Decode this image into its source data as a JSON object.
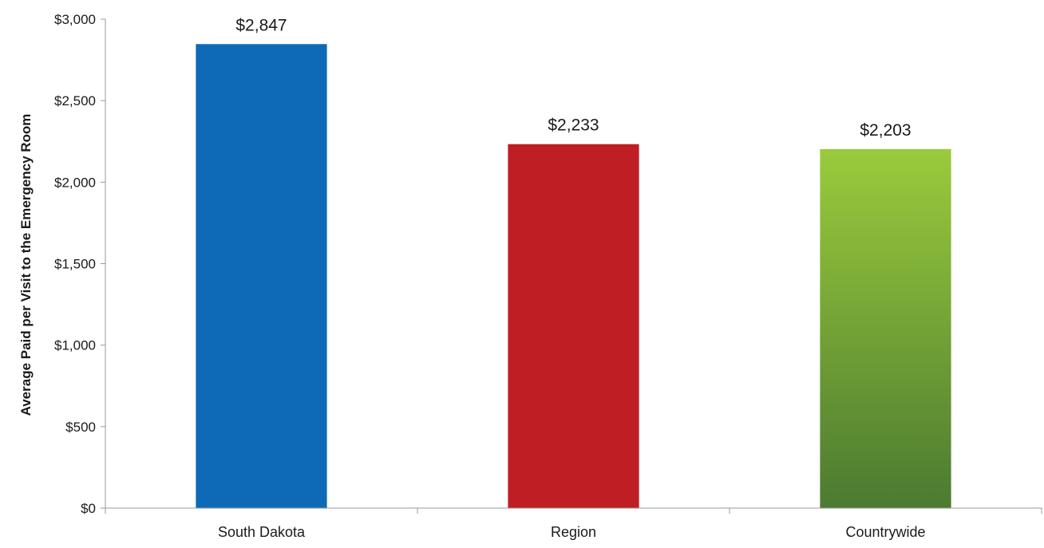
{
  "chart_data": {
    "type": "bar",
    "categories": [
      "South Dakota",
      "Region",
      "Countrywide"
    ],
    "values": [
      2847,
      2233,
      2203
    ],
    "data_labels": [
      "$2,847",
      "$2,233",
      "$2,203"
    ],
    "colors": [
      "#0e6ab7",
      "#be1e24",
      "#8bc43f"
    ],
    "countrywide_gradient": [
      "#9acb3c",
      "#4c7a31"
    ],
    "title": "",
    "xlabel": "",
    "ylabel": "Average Paid per Visit to the Emergency Room",
    "ylim": [
      0,
      3000
    ],
    "yticks": [
      0,
      500,
      1000,
      1500,
      2000,
      2500,
      3000
    ],
    "ytick_labels": [
      "$0",
      "$500",
      "$1,000",
      "$1,500",
      "$2,000",
      "$2,500",
      "$3,000"
    ],
    "grid": false,
    "legend": "none"
  }
}
